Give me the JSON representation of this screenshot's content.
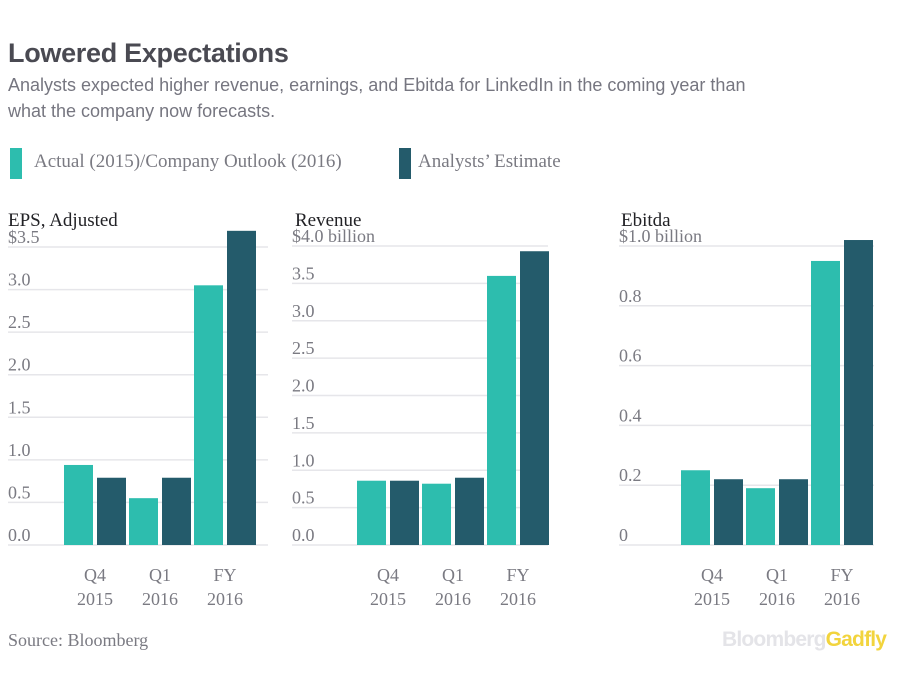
{
  "header": {
    "title": "Lowered Expectations",
    "subtitle": "Analysts expected higher revenue, earnings, and Ebitda for LinkedIn in the coming year than what the company now forecasts."
  },
  "legend": [
    {
      "label": "Actual (2015)/Company Outlook (2016)",
      "color": "#2dbdae"
    },
    {
      "label": "Analysts’ Estimate",
      "color": "#245b6b"
    }
  ],
  "chart_data": [
    {
      "type": "bar",
      "title": "EPS, Adjusted",
      "categories": [
        [
          "Q4",
          "2015"
        ],
        [
          "Q1",
          "2016"
        ],
        [
          "FY",
          "2016"
        ]
      ],
      "series": [
        {
          "name": "Actual (2015)/Company Outlook (2016)",
          "values": [
            0.94,
            0.55,
            3.05
          ]
        },
        {
          "name": "Analysts’ Estimate",
          "values": [
            0.79,
            0.79,
            3.69
          ]
        }
      ],
      "ylim": [
        0,
        3.5
      ],
      "yticks": [
        {
          "value": 0,
          "label": "0.0"
        },
        {
          "value": 0.5,
          "label": "0.5"
        },
        {
          "value": 1.0,
          "label": "1.0"
        },
        {
          "value": 1.5,
          "label": "1.5"
        },
        {
          "value": 2.0,
          "label": "2.0"
        },
        {
          "value": 2.5,
          "label": "2.5"
        },
        {
          "value": 3.0,
          "label": "3.0"
        },
        {
          "value": 3.5,
          "label": "$3.5"
        }
      ],
      "grid": true
    },
    {
      "type": "bar",
      "title": "Revenue",
      "categories": [
        [
          "Q4",
          "2015"
        ],
        [
          "Q1",
          "2016"
        ],
        [
          "FY",
          "2016"
        ]
      ],
      "series": [
        {
          "name": "Actual (2015)/Company Outlook (2016)",
          "values": [
            0.86,
            0.82,
            3.6
          ]
        },
        {
          "name": "Analysts’ Estimate",
          "values": [
            0.86,
            0.9,
            3.93
          ]
        }
      ],
      "ylim": [
        0,
        4.0
      ],
      "yticks": [
        {
          "value": 0,
          "label": "0.0"
        },
        {
          "value": 0.5,
          "label": "0.5"
        },
        {
          "value": 1.0,
          "label": "1.0"
        },
        {
          "value": 1.5,
          "label": "1.5"
        },
        {
          "value": 2.0,
          "label": "2.0"
        },
        {
          "value": 2.5,
          "label": "2.5"
        },
        {
          "value": 3.0,
          "label": "3.0"
        },
        {
          "value": 3.5,
          "label": "3.5"
        },
        {
          "value": 4.0,
          "label": "$4.0 billion"
        }
      ],
      "grid": true
    },
    {
      "type": "bar",
      "title": "Ebitda",
      "categories": [
        [
          "Q4",
          "2015"
        ],
        [
          "Q1",
          "2016"
        ],
        [
          "FY",
          "2016"
        ]
      ],
      "series": [
        {
          "name": "Actual (2015)/Company Outlook (2016)",
          "values": [
            0.25,
            0.19,
            0.95
          ]
        },
        {
          "name": "Analysts’ Estimate",
          "values": [
            0.22,
            0.22,
            1.02
          ]
        }
      ],
      "ylim": [
        0,
        1.0
      ],
      "yticks": [
        {
          "value": 0,
          "label": "0"
        },
        {
          "value": 0.2,
          "label": "0.2"
        },
        {
          "value": 0.4,
          "label": "0.4"
        },
        {
          "value": 0.6,
          "label": "0.6"
        },
        {
          "value": 0.8,
          "label": "0.8"
        },
        {
          "value": 1.0,
          "label": "$1.0 billion"
        }
      ],
      "grid": true
    }
  ],
  "footer": {
    "source": "Source: Bloomberg",
    "brand_part1": "Bloomberg",
    "brand_part2": "Gadfly"
  }
}
